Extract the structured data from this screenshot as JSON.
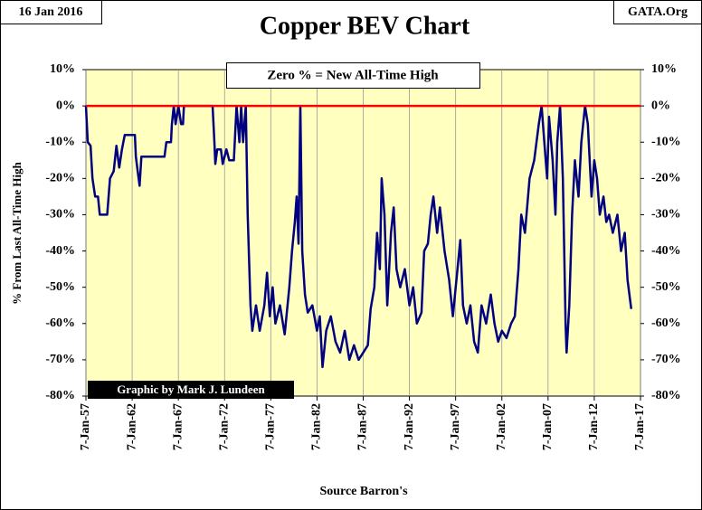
{
  "chart_data": {
    "type": "line",
    "title": "Copper BEV Chart",
    "date_label": "16 Jan 2016",
    "source_site": "GATA.Org",
    "annotation": "Zero % = New All-Time High",
    "credit": "Graphic by Mark J. Lundeen",
    "y_label": "% From Last All-Time High",
    "x_label": "Source Barron's",
    "xlim": [
      1957,
      2017
    ],
    "xticks": [
      {
        "value": 1957,
        "label": "7-Jan-57"
      },
      {
        "value": 1962,
        "label": "7-Jan-62"
      },
      {
        "value": 1967,
        "label": "7-Jan-67"
      },
      {
        "value": 1972,
        "label": "7-Jan-72"
      },
      {
        "value": 1977,
        "label": "7-Jan-77"
      },
      {
        "value": 1982,
        "label": "7-Jan-82"
      },
      {
        "value": 1987,
        "label": "7-Jan-87"
      },
      {
        "value": 1992,
        "label": "7-Jan-92"
      },
      {
        "value": 1997,
        "label": "7-Jan-97"
      },
      {
        "value": 2002,
        "label": "7-Jan-02"
      },
      {
        "value": 2007,
        "label": "7-Jan-07"
      },
      {
        "value": 2012,
        "label": "7-Jan-12"
      },
      {
        "value": 2017,
        "label": "7-Jan-17"
      }
    ],
    "ylim": [
      -80,
      10
    ],
    "yticks": [
      {
        "value": 10,
        "label": "10%"
      },
      {
        "value": 0,
        "label": "0%"
      },
      {
        "value": -10,
        "label": "-10%"
      },
      {
        "value": -20,
        "label": "-20%"
      },
      {
        "value": -30,
        "label": "-30%"
      },
      {
        "value": -40,
        "label": "-40%"
      },
      {
        "value": -50,
        "label": "-50%"
      },
      {
        "value": -60,
        "label": "-60%"
      },
      {
        "value": -70,
        "label": "-70%"
      },
      {
        "value": -80,
        "label": "-80%"
      }
    ],
    "grid": true,
    "reference_line": {
      "value": 0,
      "color": "#ff0000"
    },
    "background": "#ffffc0",
    "series": [
      {
        "color": "#000080",
        "x": [
          1957.0,
          1957.2,
          1957.5,
          1957.7,
          1958.0,
          1958.3,
          1958.5,
          1959.3,
          1959.6,
          1960.0,
          1960.3,
          1960.6,
          1960.9,
          1961.2,
          1962.3,
          1962.4,
          1962.6,
          1962.8,
          1963.0,
          1965.5,
          1965.7,
          1966.2,
          1966.3,
          1966.5,
          1966.7,
          1967.0,
          1967.3,
          1967.5,
          1967.6,
          1970.7,
          1970.9,
          1971.0,
          1971.2,
          1971.6,
          1971.8,
          1972.2,
          1972.5,
          1973.0,
          1973.3,
          1973.6,
          1973.8,
          1974.0,
          1974.3,
          1974.5,
          1974.8,
          1975.0,
          1975.4,
          1975.8,
          1976.3,
          1976.6,
          1976.9,
          1977.2,
          1977.5,
          1978.0,
          1978.5,
          1979.0,
          1979.3,
          1979.6,
          1979.8,
          1980.0,
          1980.2,
          1980.4,
          1980.7,
          1981.0,
          1981.5,
          1982.0,
          1982.3,
          1982.6,
          1983.0,
          1983.5,
          1984.0,
          1984.5,
          1985.0,
          1985.5,
          1986.0,
          1986.5,
          1987.0,
          1987.5,
          1987.8,
          1988.2,
          1988.5,
          1988.8,
          1989.0,
          1989.3,
          1989.6,
          1990.0,
          1990.3,
          1990.6,
          1991.0,
          1991.5,
          1992.0,
          1992.4,
          1992.8,
          1993.3,
          1993.6,
          1994.0,
          1994.3,
          1994.6,
          1995.0,
          1995.3,
          1995.8,
          1996.3,
          1996.7,
          1997.2,
          1997.5,
          1997.8,
          1998.2,
          1998.6,
          1999.0,
          1999.4,
          1999.8,
          2000.3,
          2000.8,
          2001.2,
          2001.6,
          2002.0,
          2002.5,
          2003.0,
          2003.4,
          2003.8,
          2004.1,
          2004.5,
          2005.0,
          2005.5,
          2006.0,
          2006.3,
          2006.6,
          2006.9,
          2007.1,
          2007.5,
          2007.8,
          2008.0,
          2008.3,
          2008.6,
          2008.9,
          2009.0,
          2009.3,
          2009.6,
          2009.9,
          2010.3,
          2010.6,
          2011.0,
          2011.3,
          2011.7,
          2012.0,
          2012.3,
          2012.6,
          2013.0,
          2013.3,
          2013.6,
          2014.0,
          2014.5,
          2014.9,
          2015.3,
          2015.6,
          2016.0
        ],
        "values": [
          0,
          -10,
          -11,
          -20,
          -25,
          -25,
          -30,
          -30,
          -20,
          -18,
          -11,
          -17,
          -12,
          -8,
          -8,
          -14,
          -18,
          -22,
          -14,
          -14,
          -10,
          -10,
          -5,
          0,
          -5,
          0,
          -5,
          -5,
          0,
          0,
          -10,
          -16,
          -12,
          -12,
          -16,
          -12,
          -15,
          -15,
          0,
          -10,
          0,
          -10,
          0,
          -30,
          -55,
          -62,
          -55,
          -62,
          -55,
          -46,
          -58,
          -50,
          -60,
          -55,
          -63,
          -50,
          -40,
          -32,
          -25,
          -38,
          0,
          -40,
          -52,
          -57,
          -55,
          -62,
          -58,
          -72,
          -62,
          -58,
          -65,
          -68,
          -62,
          -70,
          -66,
          -70,
          -68,
          -66,
          -56,
          -50,
          -35,
          -45,
          -20,
          -30,
          -55,
          -35,
          -28,
          -45,
          -50,
          -45,
          -55,
          -50,
          -60,
          -57,
          -40,
          -38,
          -30,
          -25,
          -35,
          -28,
          -40,
          -48,
          -58,
          -45,
          -37,
          -55,
          -60,
          -55,
          -65,
          -68,
          -55,
          -60,
          -52,
          -60,
          -65,
          -62,
          -64,
          -60,
          -58,
          -45,
          -30,
          -35,
          -20,
          -15,
          -5,
          0,
          -10,
          -20,
          -3,
          -15,
          -30,
          -10,
          0,
          -20,
          -60,
          -68,
          -55,
          -30,
          -15,
          -25,
          -10,
          0,
          -5,
          -25,
          -15,
          -20,
          -30,
          -25,
          -32,
          -30,
          -35,
          -30,
          -40,
          -35,
          -48,
          -56
        ]
      }
    ]
  }
}
